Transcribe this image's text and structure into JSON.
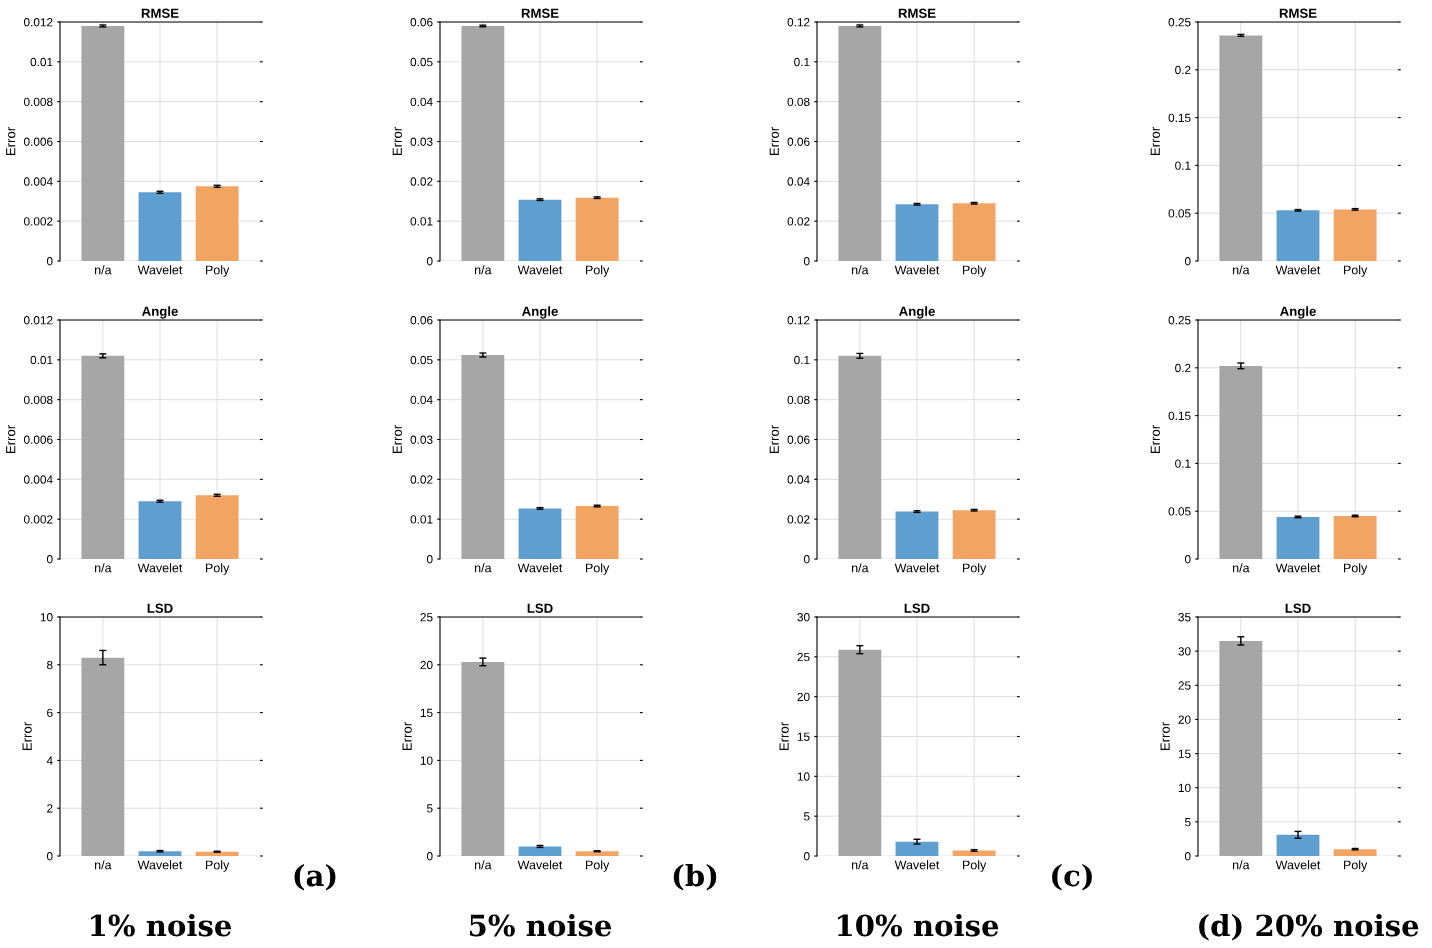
{
  "chart_data": [
    {
      "type": "bar",
      "title": "RMSE",
      "ylabel": "Error",
      "categories": [
        "n/a",
        "Wavelet",
        "Poly"
      ],
      "values": [
        0.0118,
        0.00345,
        0.00375
      ],
      "errors": [
        5e-05,
        5e-05,
        5e-05
      ],
      "colors": [
        "#a6a6a6",
        "#5f9fd0",
        "#f2a463"
      ],
      "ylim": [
        0,
        0.012
      ],
      "yticks": [
        0,
        0.002,
        0.004,
        0.006,
        0.008,
        0.01,
        0.012
      ],
      "grid": true
    },
    {
      "type": "bar",
      "title": "RMSE",
      "ylabel": "Error",
      "categories": [
        "n/a",
        "Wavelet",
        "Poly"
      ],
      "values": [
        0.059,
        0.0154,
        0.0159
      ],
      "errors": [
        0.0002,
        0.0002,
        0.0002
      ],
      "colors": [
        "#a6a6a6",
        "#5f9fd0",
        "#f2a463"
      ],
      "ylim": [
        0,
        0.06
      ],
      "yticks": [
        0,
        0.01,
        0.02,
        0.03,
        0.04,
        0.05,
        0.06
      ],
      "grid": true
    },
    {
      "type": "bar",
      "title": "RMSE",
      "ylabel": "Error",
      "categories": [
        "n/a",
        "Wavelet",
        "Poly"
      ],
      "values": [
        0.118,
        0.0285,
        0.029
      ],
      "errors": [
        0.0005,
        0.0004,
        0.0004
      ],
      "colors": [
        "#a6a6a6",
        "#5f9fd0",
        "#f2a463"
      ],
      "ylim": [
        0,
        0.12
      ],
      "yticks": [
        0,
        0.02,
        0.04,
        0.06,
        0.08,
        0.1,
        0.12
      ],
      "grid": true
    },
    {
      "type": "bar",
      "title": "RMSE",
      "ylabel": "Error",
      "categories": [
        "n/a",
        "Wavelet",
        "Poly"
      ],
      "values": [
        0.236,
        0.053,
        0.054
      ],
      "errors": [
        0.001,
        0.0008,
        0.0008
      ],
      "colors": [
        "#a6a6a6",
        "#5f9fd0",
        "#f2a463"
      ],
      "ylim": [
        0,
        0.25
      ],
      "yticks": [
        0,
        0.05,
        0.1,
        0.15,
        0.2,
        0.25
      ],
      "grid": true
    },
    {
      "type": "bar",
      "title": "Angle",
      "ylabel": "Error",
      "categories": [
        "n/a",
        "Wavelet",
        "Poly"
      ],
      "values": [
        0.0102,
        0.0029,
        0.0032
      ],
      "errors": [
        0.0001,
        5e-05,
        5e-05
      ],
      "colors": [
        "#a6a6a6",
        "#5f9fd0",
        "#f2a463"
      ],
      "ylim": [
        0,
        0.012
      ],
      "yticks": [
        0,
        0.002,
        0.004,
        0.006,
        0.008,
        0.01,
        0.012
      ],
      "grid": true
    },
    {
      "type": "bar",
      "title": "Angle",
      "ylabel": "Error",
      "categories": [
        "n/a",
        "Wavelet",
        "Poly"
      ],
      "values": [
        0.0512,
        0.0127,
        0.0133
      ],
      "errors": [
        0.0005,
        0.0002,
        0.0002
      ],
      "colors": [
        "#a6a6a6",
        "#5f9fd0",
        "#f2a463"
      ],
      "ylim": [
        0,
        0.06
      ],
      "yticks": [
        0,
        0.01,
        0.02,
        0.03,
        0.04,
        0.05,
        0.06
      ],
      "grid": true
    },
    {
      "type": "bar",
      "title": "Angle",
      "ylabel": "Error",
      "categories": [
        "n/a",
        "Wavelet",
        "Poly"
      ],
      "values": [
        0.102,
        0.0238,
        0.0245
      ],
      "errors": [
        0.0012,
        0.0004,
        0.0004
      ],
      "colors": [
        "#a6a6a6",
        "#5f9fd0",
        "#f2a463"
      ],
      "ylim": [
        0,
        0.12
      ],
      "yticks": [
        0,
        0.02,
        0.04,
        0.06,
        0.08,
        0.1,
        0.12
      ],
      "grid": true
    },
    {
      "type": "bar",
      "title": "Angle",
      "ylabel": "Error",
      "categories": [
        "n/a",
        "Wavelet",
        "Poly"
      ],
      "values": [
        0.202,
        0.044,
        0.045
      ],
      "errors": [
        0.003,
        0.0008,
        0.0008
      ],
      "colors": [
        "#a6a6a6",
        "#5f9fd0",
        "#f2a463"
      ],
      "ylim": [
        0,
        0.25
      ],
      "yticks": [
        0,
        0.05,
        0.1,
        0.15,
        0.2,
        0.25
      ],
      "grid": true
    },
    {
      "type": "bar",
      "title": "LSD",
      "ylabel": "Error",
      "categories": [
        "n/a",
        "Wavelet",
        "Poly"
      ],
      "values": [
        8.3,
        0.2,
        0.18
      ],
      "errors": [
        0.3,
        0.03,
        0.02
      ],
      "colors": [
        "#a6a6a6",
        "#5f9fd0",
        "#f2a463"
      ],
      "ylim": [
        0,
        10
      ],
      "yticks": [
        0,
        2,
        4,
        6,
        8,
        10
      ],
      "grid": true,
      "annotations": [
        "(a)",
        "1% noise"
      ]
    },
    {
      "type": "bar",
      "title": "LSD",
      "ylabel": "Error",
      "categories": [
        "n/a",
        "Wavelet",
        "Poly"
      ],
      "values": [
        20.3,
        1.0,
        0.5
      ],
      "errors": [
        0.4,
        0.1,
        0.05
      ],
      "colors": [
        "#a6a6a6",
        "#5f9fd0",
        "#f2a463"
      ],
      "ylim": [
        0,
        25
      ],
      "yticks": [
        0,
        5,
        10,
        15,
        20,
        25
      ],
      "grid": true,
      "annotations": [
        "(b)",
        "5% noise"
      ]
    },
    {
      "type": "bar",
      "title": "LSD",
      "ylabel": "Error",
      "categories": [
        "n/a",
        "Wavelet",
        "Poly"
      ],
      "values": [
        25.9,
        1.8,
        0.7
      ],
      "errors": [
        0.5,
        0.3,
        0.1
      ],
      "colors": [
        "#a6a6a6",
        "#5f9fd0",
        "#f2a463"
      ],
      "ylim": [
        0,
        30
      ],
      "yticks": [
        0,
        5,
        10,
        15,
        20,
        25,
        30
      ],
      "grid": true,
      "annotations": [
        "(c)",
        "10% noise"
      ]
    },
    {
      "type": "bar",
      "title": "LSD",
      "ylabel": "Error",
      "categories": [
        "n/a",
        "Wavelet",
        "Poly"
      ],
      "values": [
        31.5,
        3.1,
        1.0
      ],
      "errors": [
        0.6,
        0.5,
        0.1
      ],
      "colors": [
        "#a6a6a6",
        "#5f9fd0",
        "#f2a463"
      ],
      "ylim": [
        0,
        35
      ],
      "yticks": [
        0,
        5,
        10,
        15,
        20,
        25,
        30,
        35
      ],
      "grid": true,
      "annotations": [
        "(d) 20% noise"
      ]
    }
  ]
}
